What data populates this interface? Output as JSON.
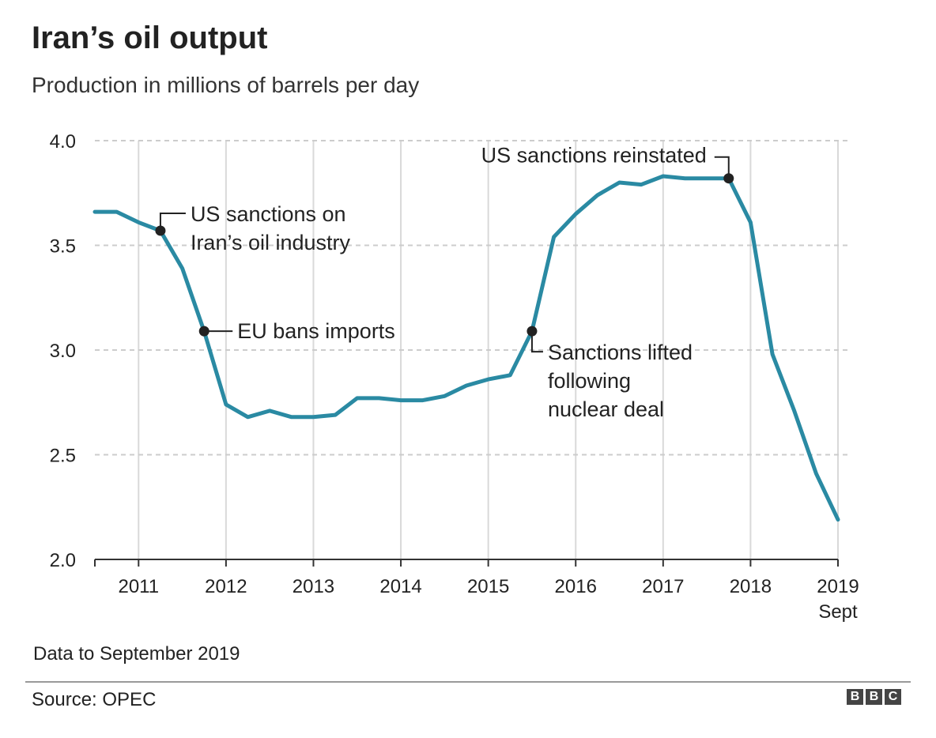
{
  "title": "Iran’s oil output",
  "subtitle": "Production in millions of barrels per day",
  "footnote": "Data to September 2019",
  "source": "Source: OPEC",
  "logo": [
    "B",
    "B",
    "C"
  ],
  "colors": {
    "line": "#2a8aa3",
    "grid": "#cccccc",
    "marker": "#222222",
    "text": "#222222"
  },
  "chart_data": {
    "type": "line",
    "title": "Iran’s oil output",
    "ylabel": "Production in millions of barrels per day",
    "ylim": [
      2.0,
      4.0
    ],
    "xlim": [
      2010.5,
      2019.0
    ],
    "yticks": [
      "2.0",
      "2.5",
      "3.0",
      "3.5",
      "4.0"
    ],
    "xtick_labels": [
      "2011",
      "2012",
      "2013",
      "2014",
      "2015",
      "2016",
      "2017",
      "2018",
      "2019"
    ],
    "xtick_sublabel": "Sept",
    "grid": "horizontal dashed, vertical solid",
    "x": [
      2010.5,
      2010.75,
      2011.0,
      2011.25,
      2011.5,
      2011.75,
      2012.0,
      2012.25,
      2012.5,
      2012.75,
      2013.0,
      2013.25,
      2013.5,
      2013.75,
      2014.0,
      2014.25,
      2014.5,
      2014.75,
      2015.0,
      2015.25,
      2015.5,
      2015.75,
      2016.0,
      2016.25,
      2016.5,
      2016.75,
      2017.0,
      2017.25,
      2017.5,
      2017.75,
      2018.0,
      2018.25,
      2018.5,
      2018.75,
      2019.0
    ],
    "series": [
      {
        "values": [
          3.66,
          3.66,
          3.61,
          3.57,
          3.39,
          3.09,
          2.74,
          2.68,
          2.71,
          2.68,
          2.68,
          2.69,
          2.77,
          2.77,
          2.76,
          2.76,
          2.78,
          2.83,
          2.86,
          2.88,
          3.09,
          3.54,
          3.65,
          3.74,
          3.8,
          3.79,
          3.83,
          3.82,
          3.82,
          3.82,
          3.61,
          2.98,
          2.71,
          2.41,
          2.19
        ]
      }
    ],
    "annotations": [
      {
        "x": 2011.25,
        "y": 3.57,
        "lines": [
          "US sanctions on",
          "Iran’s oil industry"
        ]
      },
      {
        "x": 2011.75,
        "y": 3.09,
        "lines": [
          "EU bans imports"
        ]
      },
      {
        "x": 2015.5,
        "y": 3.09,
        "lines": [
          "Sanctions lifted",
          "following",
          "nuclear deal"
        ]
      },
      {
        "x": 2017.75,
        "y": 3.82,
        "lines": [
          "US sanctions reinstated"
        ]
      }
    ]
  }
}
